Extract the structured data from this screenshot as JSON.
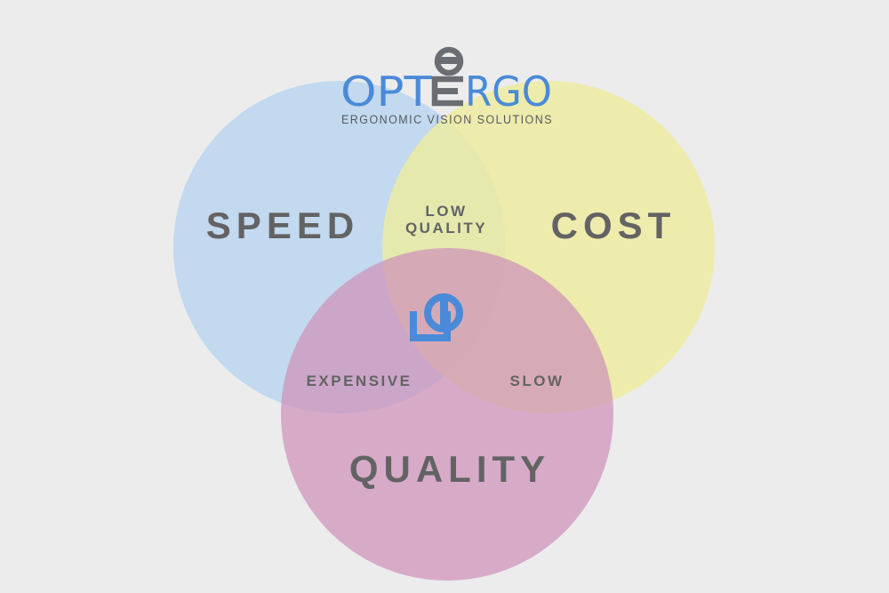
{
  "brand": {
    "logo_text": "OPTERGO",
    "tagline": "ERGONOMIC VISION SOLUTIONS",
    "colors": {
      "blue": "#4a8ad8",
      "gray": "#6a6d72"
    }
  },
  "diagram": {
    "circles": [
      {
        "id": "speed",
        "label": "SPEED",
        "color": "#b8d4ef"
      },
      {
        "id": "cost",
        "label": "COST",
        "color": "#eeec9c"
      },
      {
        "id": "quality",
        "label": "QUALITY",
        "color": "#cf91ba"
      }
    ],
    "intersections": {
      "speed_cost": {
        "line1": "LOW",
        "line2": "QUALITY"
      },
      "speed_quality": "EXPENSIVE",
      "cost_quality": "SLOW"
    },
    "center_icon": "optergo-mark-icon"
  }
}
